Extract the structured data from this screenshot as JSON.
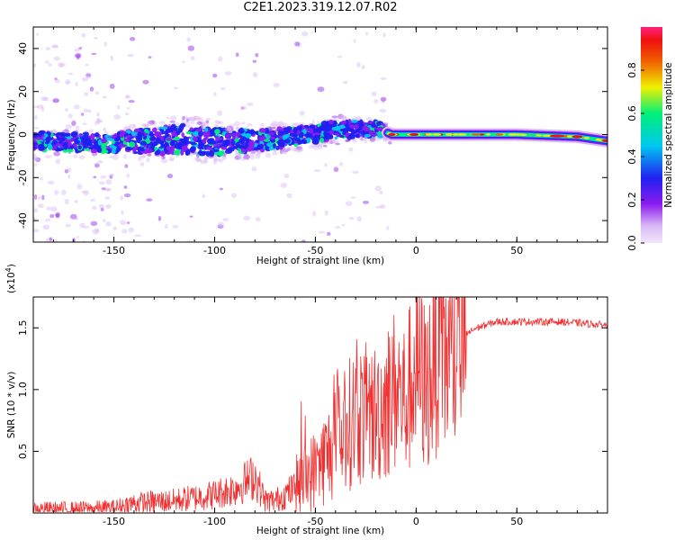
{
  "title": "C2E1.2023.319.12.07.R02",
  "colors": {
    "snr_line": "#f03030",
    "axis": "#000000",
    "colormap": [
      "#d9b8f5",
      "#8c1cf0",
      "#2020f0",
      "#00c8f0",
      "#00f078",
      "#f0f000",
      "#f06000",
      "#f01010",
      "#ff2080"
    ]
  },
  "chart_data": [
    {
      "type": "heatmap",
      "title": "C2E1.2023.319.12.07.R02",
      "xlabel": "Height of straight line (km)",
      "ylabel": "Frequency (Hz)",
      "xlim": [
        -190,
        95
      ],
      "ylim": [
        -50,
        50
      ],
      "x_ticks": [
        "-150",
        "-100",
        "-50",
        "0",
        "50"
      ],
      "y_ticks": [
        "-40",
        "-20",
        "0",
        "20",
        "40"
      ],
      "colorbar": {
        "label": "Normalized spectral amplitude",
        "range": [
          0.0,
          1.0
        ],
        "ticks": [
          "0.0",
          "0.2",
          "0.4",
          "0.6",
          "0.8"
        ]
      },
      "description_points": {
        "x": [
          -190,
          -150,
          -120,
          -100,
          -80,
          -60,
          -40,
          -20,
          -12,
          0,
          20,
          50,
          80,
          95
        ],
        "center_freq": [
          -3,
          -4,
          -2,
          -3,
          -3,
          -1,
          2,
          3,
          0,
          0,
          0,
          0,
          -1,
          -3
        ],
        "spread": [
          6,
          6,
          10,
          9,
          7,
          6,
          6,
          5,
          2,
          2,
          2,
          2,
          2,
          2
        ]
      }
    },
    {
      "type": "line",
      "xlabel": "Height of straight line (km)",
      "ylabel": "SNR (10 * v/v)",
      "y_exponent": "(x10",
      "y_exponent_power": "4",
      "y_exponent_close": ")",
      "xlim": [
        -190,
        95
      ],
      "ylim": [
        0,
        1.75
      ],
      "x_ticks": [
        "-150",
        "-100",
        "-50",
        "0",
        "50"
      ],
      "y_ticks": [
        "0.5",
        "1.0",
        "1.5"
      ],
      "series": [
        {
          "x": [
            -190,
            -170,
            -150,
            -140,
            -120,
            -100,
            -90,
            -80,
            -75,
            -70,
            -60,
            -50,
            -40,
            -30,
            -20,
            -10,
            -5,
            0,
            5,
            10,
            15,
            20,
            25,
            30,
            40,
            50,
            60,
            70,
            80,
            95
          ],
          "y": [
            0.03,
            0.03,
            0.04,
            0.08,
            0.1,
            0.15,
            0.2,
            0.3,
            0.1,
            0.1,
            0.2,
            0.35,
            0.55,
            0.8,
            0.8,
            1.0,
            0.9,
            1.2,
            1.0,
            1.3,
            1.25,
            1.3,
            1.45,
            1.5,
            1.55,
            1.55,
            1.55,
            1.55,
            1.54,
            1.52
          ]
        }
      ]
    }
  ]
}
